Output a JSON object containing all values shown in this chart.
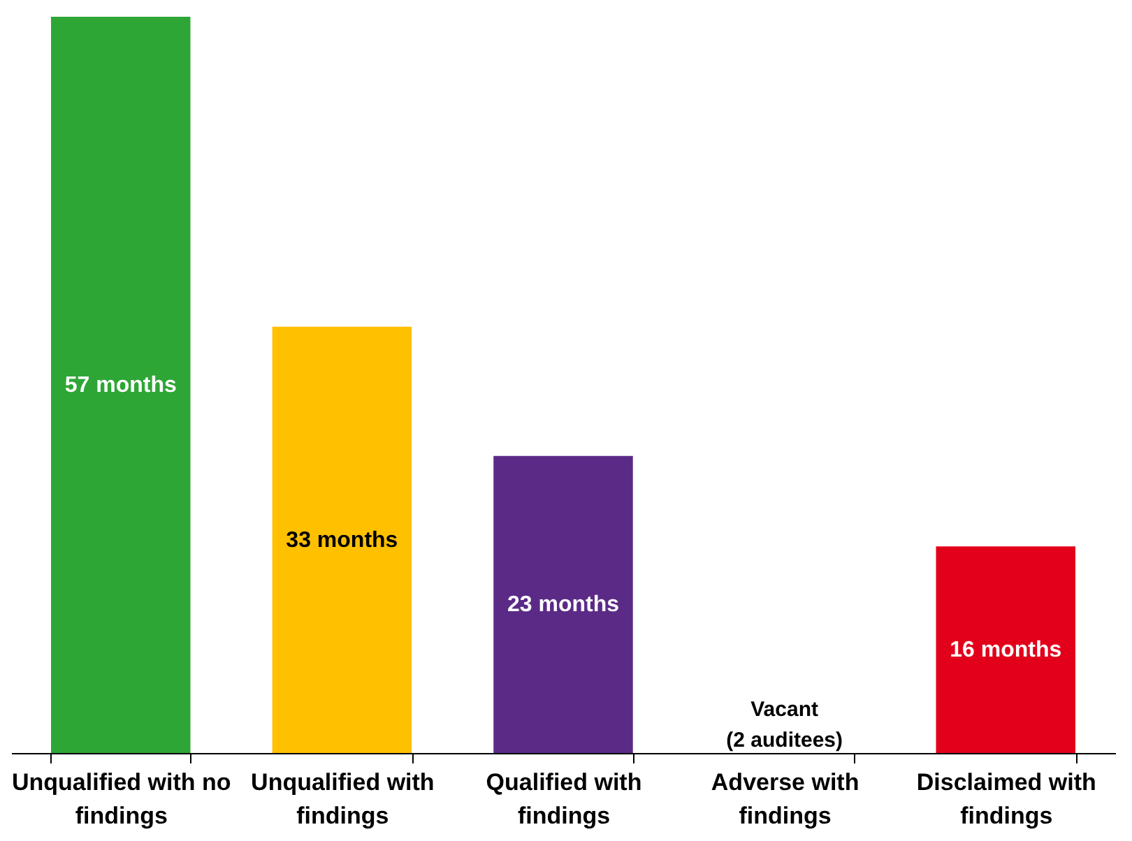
{
  "chart_data": {
    "type": "bar",
    "categories": [
      "Unqualified with no findings",
      "Unqualified with findings",
      "Qualified with findings",
      "Adverse with findings",
      "Disclaimed with findings"
    ],
    "values": [
      57,
      33,
      23,
      null,
      16
    ],
    "colors": [
      "#2ea636",
      "#ffc000",
      "#5b2a86",
      "#888888",
      "#e2001a"
    ],
    "value_labels": [
      "57 months",
      "33 months",
      "23 months",
      null,
      "16 months"
    ],
    "annotations": [
      "Vacant\n(2 auditees)"
    ],
    "tick_labels": "x",
    "grid": false
  }
}
